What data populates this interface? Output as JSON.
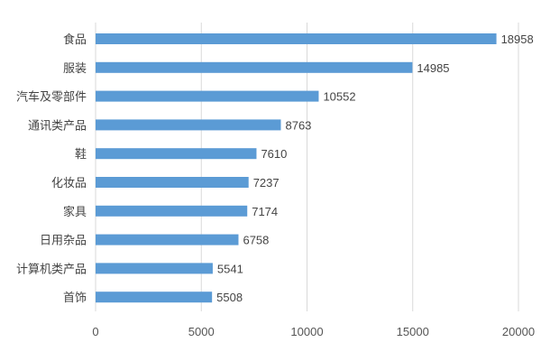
{
  "chart_data": {
    "type": "bar",
    "orientation": "horizontal",
    "title": "",
    "xlabel": "",
    "ylabel": "",
    "categories": [
      "食品",
      "服装",
      "汽车及零部件",
      "通讯类产品",
      "鞋",
      "化妆品",
      "家具",
      "日用杂品",
      "计算机类产品",
      "首饰"
    ],
    "values": [
      18958,
      14985,
      10552,
      8763,
      7610,
      7237,
      7174,
      6758,
      5541,
      5508
    ],
    "xlim": [
      0,
      20000
    ],
    "xticks": [
      0,
      5000,
      10000,
      15000,
      20000
    ],
    "grid": "vertical",
    "data_labels": true,
    "bar_color": "#5b9bd5",
    "grid_color": "#d9d9d9"
  }
}
